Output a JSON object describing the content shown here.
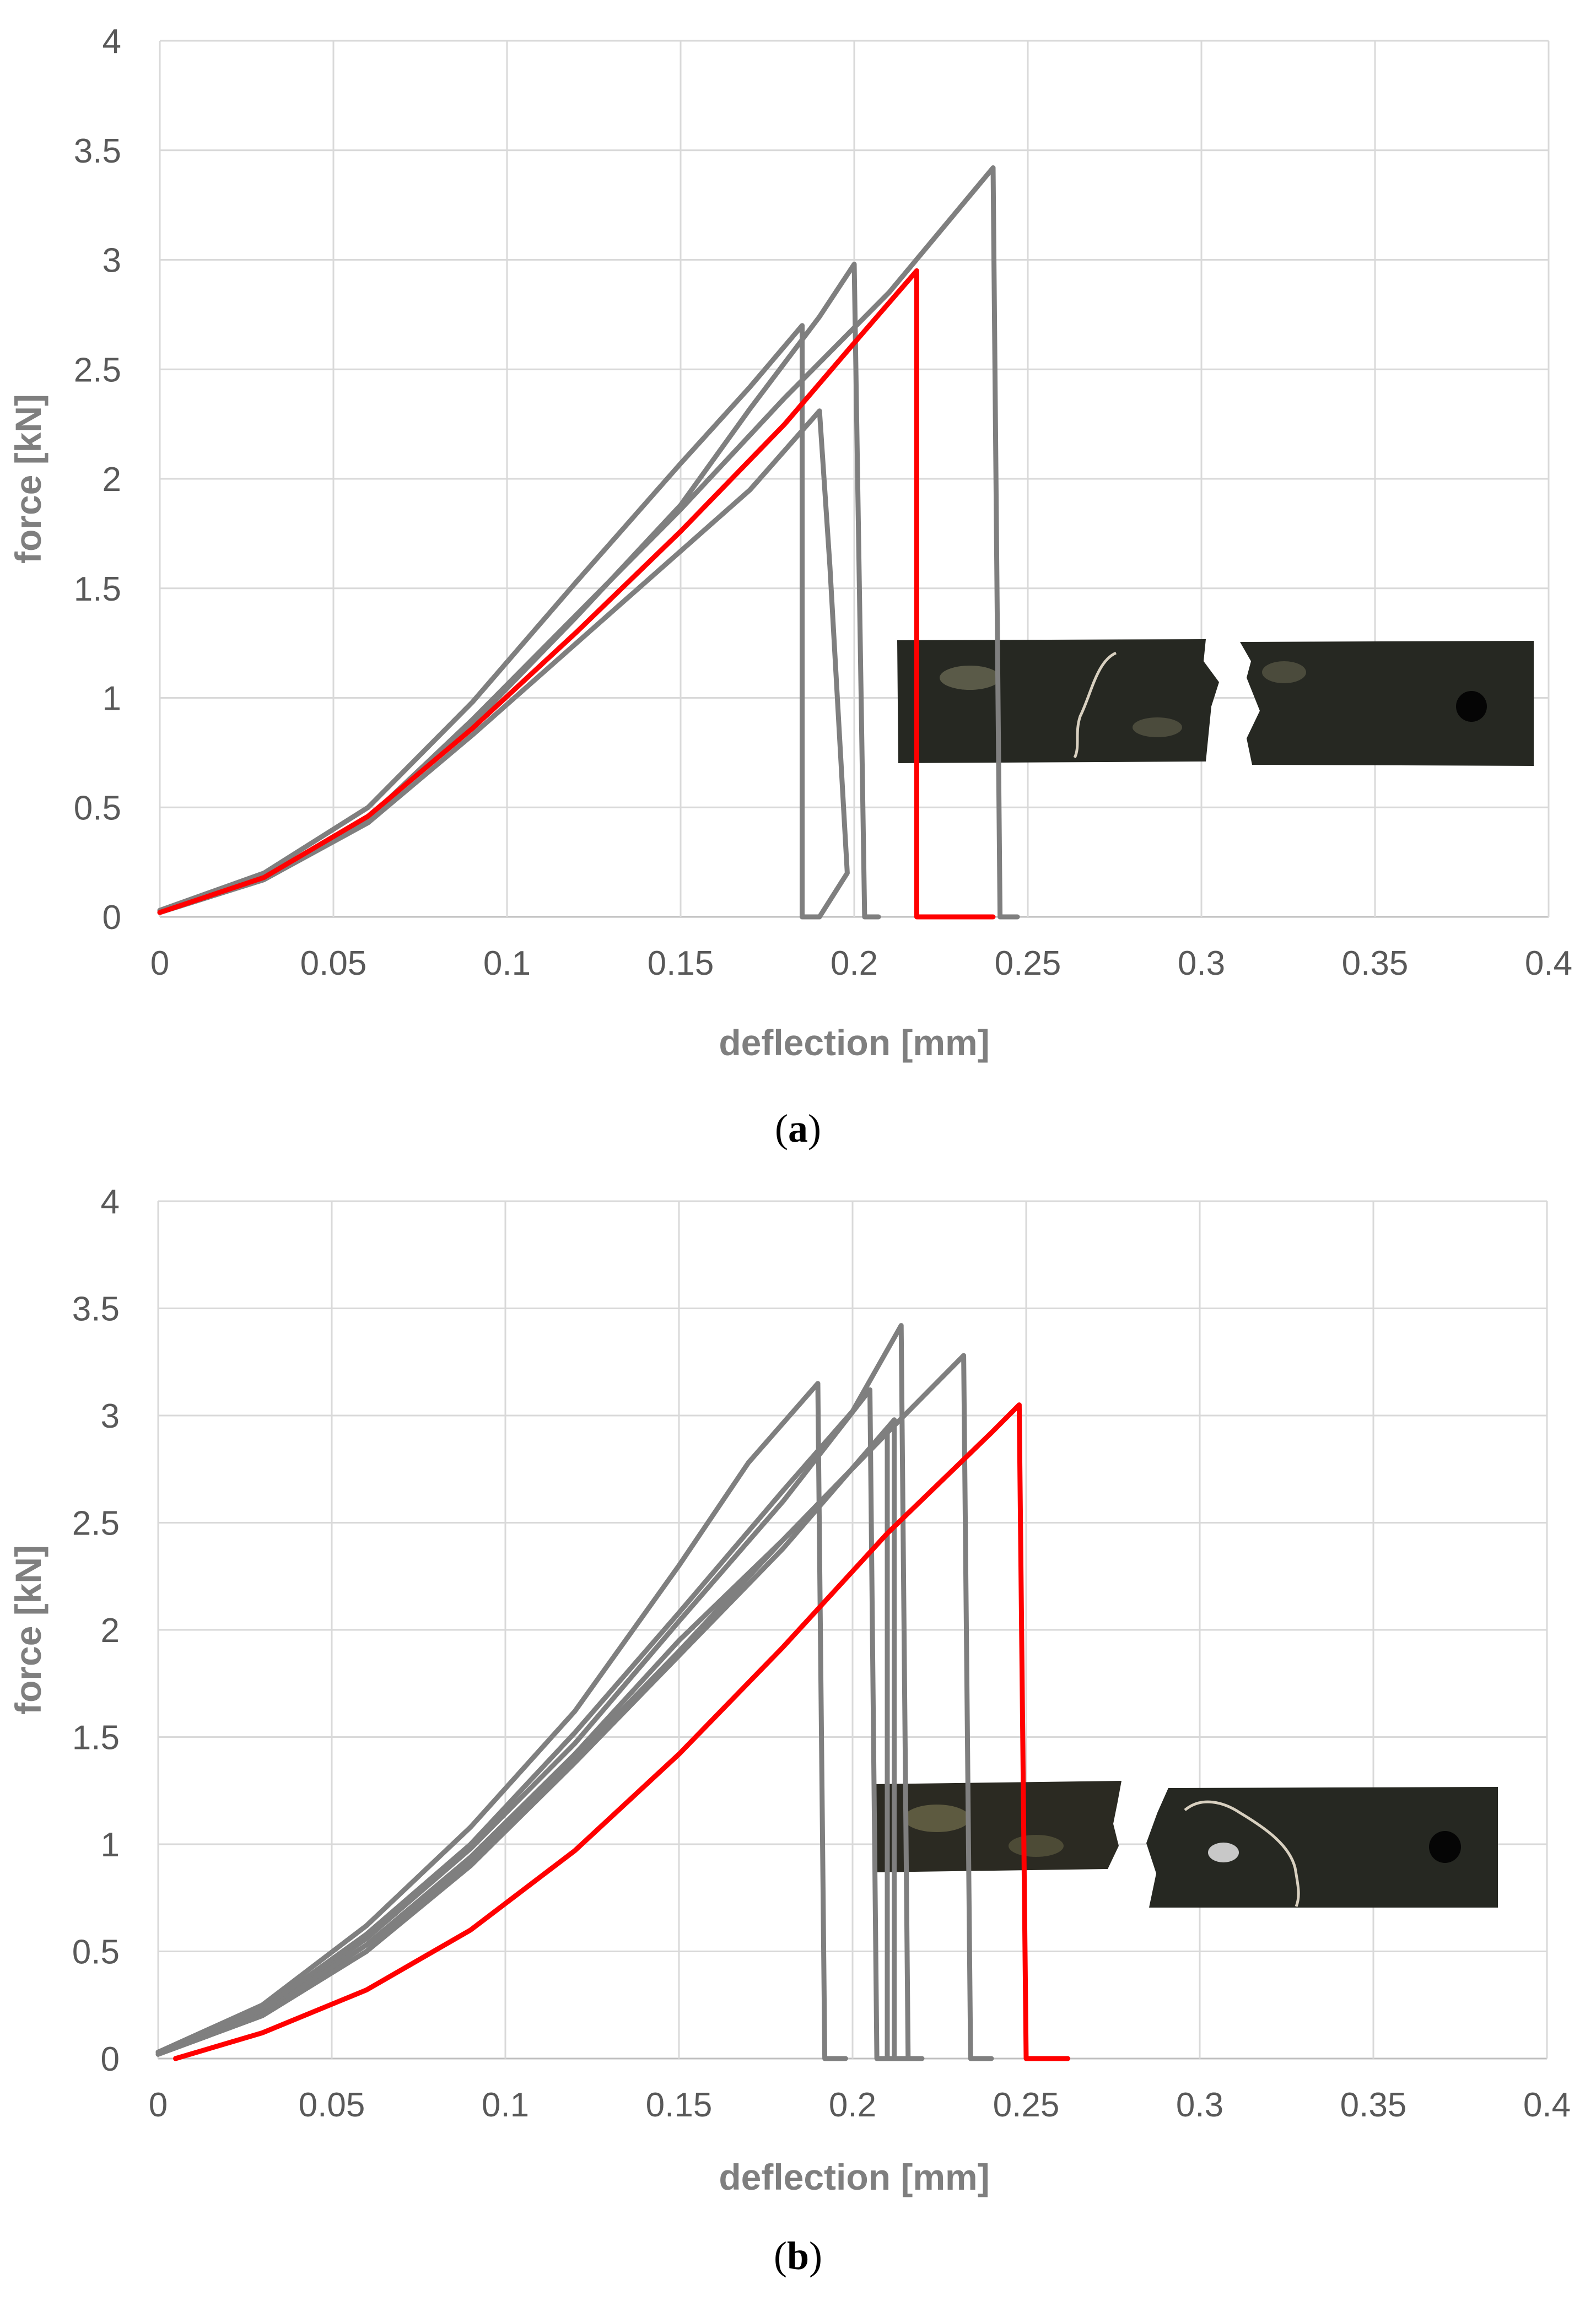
{
  "colors": {
    "grid": "#d9d9d9",
    "test_series": "#7f7f7f",
    "highlight_series": "#ff0000",
    "specimen": "#262822",
    "specimen_spot": "#5a5a48",
    "wire": "#d8d0c0"
  },
  "chart_data": [
    {
      "type": "line",
      "panel_label": "a",
      "xlabel": "deflection  [mm]",
      "ylabel": "force  [kN]",
      "xlim": [
        0,
        0.4
      ],
      "ylim": [
        0,
        4
      ],
      "xticks": [
        "0",
        "0.05",
        "0.1",
        "0.15",
        "0.2",
        "0.25",
        "0.3",
        "0.35",
        "0.4"
      ],
      "yticks": [
        "0",
        "0.5",
        "1",
        "1.5",
        "2",
        "2.5",
        "3",
        "3.5",
        "4"
      ],
      "grid": true,
      "series": [
        {
          "color": "gray",
          "x": [
            0,
            0.03,
            0.06,
            0.09,
            0.12,
            0.15,
            0.17,
            0.185,
            0.185,
            0.187
          ],
          "y": [
            0.03,
            0.2,
            0.5,
            0.98,
            1.53,
            2.07,
            2.42,
            2.7,
            0.0,
            0.0
          ]
        },
        {
          "color": "gray",
          "x": [
            0,
            0.03,
            0.06,
            0.09,
            0.12,
            0.15,
            0.17,
            0.19,
            0.2,
            0.203,
            0.207
          ],
          "y": [
            0.02,
            0.18,
            0.45,
            0.88,
            1.37,
            1.88,
            2.32,
            2.74,
            2.98,
            0.0,
            0.0
          ]
        },
        {
          "color": "gray",
          "x": [
            0,
            0.03,
            0.06,
            0.09,
            0.12,
            0.15,
            0.17,
            0.19,
            0.193,
            0.198,
            0.19,
            0.185
          ],
          "y": [
            0.02,
            0.17,
            0.43,
            0.83,
            1.25,
            1.67,
            1.95,
            2.31,
            1.6,
            0.2,
            0.0,
            0.0
          ]
        },
        {
          "color": "gray",
          "x": [
            0,
            0.03,
            0.06,
            0.09,
            0.12,
            0.15,
            0.18,
            0.21,
            0.24,
            0.242,
            0.247
          ],
          "y": [
            0.02,
            0.17,
            0.45,
            0.9,
            1.38,
            1.86,
            2.37,
            2.85,
            3.42,
            0.0,
            0.0
          ]
        },
        {
          "color": "red",
          "x": [
            0,
            0.03,
            0.06,
            0.09,
            0.12,
            0.15,
            0.18,
            0.2,
            0.218,
            0.218,
            0.24
          ],
          "y": [
            0.02,
            0.18,
            0.46,
            0.86,
            1.3,
            1.76,
            2.25,
            2.62,
            2.95,
            0.0,
            0.0
          ]
        }
      ]
    },
    {
      "type": "line",
      "panel_label": "b",
      "xlabel": "deflection  [mm]",
      "ylabel": "force [kN]",
      "xlim": [
        0,
        0.4
      ],
      "ylim": [
        0,
        4
      ],
      "xticks": [
        "0",
        "0.05",
        "0.1",
        "0.15",
        "0.2",
        "0.25",
        "0.3",
        "0.35",
        "0.4"
      ],
      "yticks": [
        "0",
        "0.5",
        "1",
        "1.5",
        "2",
        "2.5",
        "3",
        "3.5",
        "4"
      ],
      "grid": true,
      "series": [
        {
          "color": "gray",
          "x": [
            0,
            0.03,
            0.06,
            0.09,
            0.12,
            0.15,
            0.17,
            0.19,
            0.192,
            0.198
          ],
          "y": [
            0.03,
            0.25,
            0.62,
            1.08,
            1.62,
            2.3,
            2.78,
            3.15,
            0.0,
            0.0
          ]
        },
        {
          "color": "gray",
          "x": [
            0,
            0.03,
            0.06,
            0.09,
            0.12,
            0.15,
            0.18,
            0.205,
            0.207,
            0.212
          ],
          "y": [
            0.03,
            0.22,
            0.56,
            0.98,
            1.47,
            2.04,
            2.6,
            3.12,
            0.0,
            0.0
          ]
        },
        {
          "color": "gray",
          "x": [
            0,
            0.03,
            0.06,
            0.09,
            0.12,
            0.15,
            0.18,
            0.2,
            0.214,
            0.216,
            0.22
          ],
          "y": [
            0.03,
            0.23,
            0.58,
            1.0,
            1.52,
            2.08,
            2.65,
            3.02,
            3.42,
            0.0,
            0.0
          ]
        },
        {
          "color": "gray",
          "x": [
            0,
            0.03,
            0.06,
            0.09,
            0.12,
            0.15,
            0.18,
            0.21,
            0.21,
            0.215
          ],
          "y": [
            0.02,
            0.21,
            0.53,
            0.94,
            1.42,
            1.95,
            2.42,
            2.92,
            0.0,
            0.0
          ]
        },
        {
          "color": "gray",
          "x": [
            0,
            0.03,
            0.06,
            0.09,
            0.12,
            0.15,
            0.18,
            0.212,
            0.212,
            0.218
          ],
          "y": [
            0.02,
            0.2,
            0.5,
            0.9,
            1.38,
            1.88,
            2.38,
            2.98,
            0.0,
            0.0
          ]
        },
        {
          "color": "gray",
          "x": [
            0,
            0.03,
            0.06,
            0.09,
            0.12,
            0.15,
            0.18,
            0.21,
            0.232,
            0.234,
            0.24
          ],
          "y": [
            0.02,
            0.2,
            0.5,
            0.92,
            1.4,
            1.9,
            2.42,
            2.92,
            3.28,
            0.0,
            0.0
          ]
        },
        {
          "color": "red",
          "x": [
            0.005,
            0.03,
            0.06,
            0.09,
            0.12,
            0.15,
            0.18,
            0.21,
            0.24,
            0.248,
            0.25,
            0.262
          ],
          "y": [
            0.0,
            0.12,
            0.32,
            0.6,
            0.97,
            1.42,
            1.92,
            2.45,
            2.92,
            3.05,
            0.0,
            0.0
          ]
        }
      ]
    }
  ]
}
